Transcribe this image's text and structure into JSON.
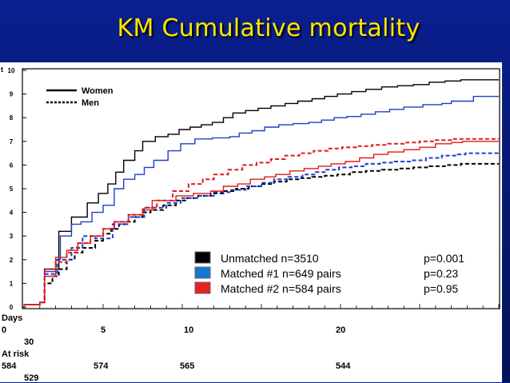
{
  "slide_title": "KM Cumulative mortality",
  "chart_data": {
    "type": "line",
    "step": true,
    "title": "",
    "ylabel": "Pct",
    "ylabel_visible": "t",
    "y_ticks": [
      "0",
      "1",
      "2",
      "3",
      "4",
      "5",
      "6",
      "7",
      "8",
      "9",
      "10"
    ],
    "ylim": [
      0,
      10
    ],
    "xlim": [
      0,
      30
    ],
    "grid": false,
    "sex_legend": [
      {
        "label": "Women",
        "style": "solid"
      },
      {
        "label": "Men",
        "style": "dashed"
      }
    ],
    "group_legend": [
      {
        "label": "Unmatched n=3510",
        "p": "p=0.001",
        "color": "#000000"
      },
      {
        "label": "Matched #1 n=649 pairs",
        "p": "p=0.23",
        "color": "#1f3fc8"
      },
      {
        "label": "Matched #2 n=584 pairs",
        "p": "p=0.95",
        "color": "#e01b1b"
      }
    ],
    "series": [
      {
        "name": "Unmatched Women",
        "color": "#000000",
        "style": "solid",
        "points": [
          [
            0,
            0.1
          ],
          [
            1,
            0.2
          ],
          [
            1.3,
            1.6
          ],
          [
            2,
            1.6
          ],
          [
            2.2,
            3.2
          ],
          [
            3,
            3.8
          ],
          [
            4,
            4.4
          ],
          [
            4.7,
            4.8
          ],
          [
            5.3,
            5.2
          ],
          [
            5.8,
            5.7
          ],
          [
            6.3,
            6.2
          ],
          [
            7,
            6.6
          ],
          [
            7.5,
            7.0
          ],
          [
            8.3,
            7.2
          ],
          [
            9.1,
            7.3
          ],
          [
            9.8,
            7.5
          ],
          [
            10.5,
            7.6
          ],
          [
            11.2,
            7.7
          ],
          [
            11.9,
            7.8
          ],
          [
            12.6,
            8.0
          ],
          [
            13.2,
            8.2
          ],
          [
            14,
            8.3
          ],
          [
            14.8,
            8.4
          ],
          [
            15.6,
            8.5
          ],
          [
            16.5,
            8.6
          ],
          [
            17.3,
            8.7
          ],
          [
            18.2,
            8.8
          ],
          [
            19,
            8.9
          ],
          [
            19.8,
            9.0
          ],
          [
            20.7,
            9.1
          ],
          [
            21.6,
            9.2
          ],
          [
            22.6,
            9.3
          ],
          [
            23.6,
            9.35
          ],
          [
            24.6,
            9.4
          ],
          [
            25.6,
            9.5
          ],
          [
            26.6,
            9.55
          ],
          [
            27.6,
            9.6
          ],
          [
            30,
            9.6
          ]
        ]
      },
      {
        "name": "Unmatched Men",
        "color": "#000000",
        "style": "dashed",
        "points": [
          [
            0,
            0.1
          ],
          [
            1,
            0.2
          ],
          [
            1.3,
            1.0
          ],
          [
            1.8,
            1.3
          ],
          [
            2.2,
            1.6
          ],
          [
            2.7,
            2.0
          ],
          [
            3.2,
            2.3
          ],
          [
            3.7,
            2.5
          ],
          [
            4.5,
            2.8
          ],
          [
            5,
            3.1
          ],
          [
            5.5,
            3.3
          ],
          [
            6,
            3.5
          ],
          [
            6.5,
            3.6
          ],
          [
            7,
            3.8
          ],
          [
            7.5,
            4.0
          ],
          [
            8,
            4.1
          ],
          [
            8.8,
            4.3
          ],
          [
            9.6,
            4.5
          ],
          [
            10.3,
            4.6
          ],
          [
            11,
            4.7
          ],
          [
            11.8,
            4.8
          ],
          [
            12.6,
            4.9
          ],
          [
            13.4,
            5.0
          ],
          [
            14.2,
            5.1
          ],
          [
            15,
            5.2
          ],
          [
            15.8,
            5.3
          ],
          [
            16.6,
            5.4
          ],
          [
            17.4,
            5.45
          ],
          [
            18.2,
            5.5
          ],
          [
            19,
            5.55
          ],
          [
            19.8,
            5.6
          ],
          [
            20.6,
            5.7
          ],
          [
            21.6,
            5.75
          ],
          [
            22.6,
            5.8
          ],
          [
            23.6,
            5.85
          ],
          [
            24.6,
            5.9
          ],
          [
            25.6,
            5.95
          ],
          [
            26.6,
            6.0
          ],
          [
            27.6,
            6.05
          ],
          [
            30,
            6.05
          ]
        ]
      },
      {
        "name": "Matched #1 Women",
        "color": "#1f3fc8",
        "style": "solid",
        "points": [
          [
            0,
            0.1
          ],
          [
            1,
            0.2
          ],
          [
            1.3,
            1.5
          ],
          [
            2,
            2.0
          ],
          [
            2.3,
            3.0
          ],
          [
            3,
            3.5
          ],
          [
            3.6,
            3.6
          ],
          [
            4.3,
            4.0
          ],
          [
            5,
            4.3
          ],
          [
            5.7,
            5.0
          ],
          [
            6.3,
            5.4
          ],
          [
            7,
            5.6
          ],
          [
            7.6,
            5.9
          ],
          [
            8.2,
            6.2
          ],
          [
            9.1,
            6.6
          ],
          [
            9.9,
            6.9
          ],
          [
            10.8,
            7.1
          ],
          [
            11.9,
            7.15
          ],
          [
            13,
            7.2
          ],
          [
            13.6,
            7.35
          ],
          [
            14.4,
            7.45
          ],
          [
            15.2,
            7.6
          ],
          [
            16.1,
            7.7
          ],
          [
            17,
            7.75
          ],
          [
            18,
            7.8
          ],
          [
            18.8,
            7.9
          ],
          [
            19.6,
            8.0
          ],
          [
            20.4,
            8.05
          ],
          [
            21.3,
            8.15
          ],
          [
            22.2,
            8.25
          ],
          [
            23.1,
            8.35
          ],
          [
            24,
            8.45
          ],
          [
            25.2,
            8.55
          ],
          [
            26.4,
            8.6
          ],
          [
            27,
            8.7
          ],
          [
            28.4,
            8.9
          ],
          [
            30,
            8.9
          ]
        ]
      },
      {
        "name": "Matched #1 Men",
        "color": "#1f3fc8",
        "style": "dashed",
        "points": [
          [
            0,
            0.1
          ],
          [
            1,
            0.2
          ],
          [
            1.3,
            1.4
          ],
          [
            2.1,
            2.0
          ],
          [
            3,
            2.5
          ],
          [
            3.7,
            3.0
          ],
          [
            4.5,
            2.9
          ],
          [
            5.6,
            3.5
          ],
          [
            6.6,
            3.8
          ],
          [
            7.6,
            4.2
          ],
          [
            9,
            4.4
          ],
          [
            9.9,
            4.6
          ],
          [
            11,
            4.7
          ],
          [
            12,
            4.85
          ],
          [
            13,
            4.95
          ],
          [
            14,
            5.1
          ],
          [
            15,
            5.25
          ],
          [
            15.8,
            5.4
          ],
          [
            16.7,
            5.5
          ],
          [
            17.6,
            5.6
          ],
          [
            18.4,
            5.7
          ],
          [
            19.1,
            5.8
          ],
          [
            19.9,
            5.9
          ],
          [
            20.7,
            5.95
          ],
          [
            21.6,
            6.05
          ],
          [
            22.5,
            6.1
          ],
          [
            23.4,
            6.15
          ],
          [
            24.4,
            6.2
          ],
          [
            25.4,
            6.3
          ],
          [
            26.4,
            6.4
          ],
          [
            27.4,
            6.45
          ],
          [
            27.9,
            6.5
          ],
          [
            30,
            6.5
          ]
        ]
      },
      {
        "name": "Matched #2 Women",
        "color": "#e01b1b",
        "style": "solid",
        "points": [
          [
            0,
            0.1
          ],
          [
            1,
            0.2
          ],
          [
            1.3,
            1.3
          ],
          [
            2,
            2.1
          ],
          [
            2.7,
            2.4
          ],
          [
            3.4,
            2.7
          ],
          [
            4.2,
            3.0
          ],
          [
            5,
            3.3
          ],
          [
            5.7,
            3.6
          ],
          [
            6.6,
            3.9
          ],
          [
            7.5,
            4.1
          ],
          [
            8.1,
            4.5
          ],
          [
            9.6,
            4.7
          ],
          [
            10.7,
            4.8
          ],
          [
            11.8,
            4.9
          ],
          [
            12.6,
            5.1
          ],
          [
            13.5,
            5.2
          ],
          [
            14.3,
            5.4
          ],
          [
            15.2,
            5.5
          ],
          [
            15.9,
            5.6
          ],
          [
            16.8,
            5.75
          ],
          [
            17.7,
            5.85
          ],
          [
            18.6,
            5.95
          ],
          [
            19.4,
            6.05
          ],
          [
            20.3,
            6.15
          ],
          [
            21.2,
            6.3
          ],
          [
            22.1,
            6.45
          ],
          [
            23,
            6.55
          ],
          [
            24,
            6.65
          ],
          [
            25,
            6.75
          ],
          [
            26,
            6.9
          ],
          [
            27,
            6.95
          ],
          [
            27.7,
            7.0
          ],
          [
            30,
            7.0
          ]
        ]
      },
      {
        "name": "Matched #2 Men",
        "color": "#e01b1b",
        "style": "dashed",
        "points": [
          [
            0,
            0.1
          ],
          [
            1,
            0.2
          ],
          [
            1.3,
            1.6
          ],
          [
            2,
            1.9
          ],
          [
            2.7,
            2.3
          ],
          [
            3.4,
            2.7
          ],
          [
            4.2,
            3.0
          ],
          [
            5,
            3.3
          ],
          [
            5.7,
            3.6
          ],
          [
            6.6,
            3.9
          ],
          [
            7.5,
            4.2
          ],
          [
            8.4,
            4.5
          ],
          [
            9.4,
            4.9
          ],
          [
            10.4,
            5.2
          ],
          [
            11.3,
            5.4
          ],
          [
            12,
            5.6
          ],
          [
            12.9,
            5.8
          ],
          [
            13.8,
            6.0
          ],
          [
            14.7,
            6.1
          ],
          [
            15.6,
            6.25
          ],
          [
            16.5,
            6.4
          ],
          [
            17.4,
            6.5
          ],
          [
            18.3,
            6.6
          ],
          [
            19.2,
            6.7
          ],
          [
            20.1,
            6.75
          ],
          [
            21,
            6.8
          ],
          [
            22,
            6.85
          ],
          [
            23,
            6.9
          ],
          [
            24,
            6.95
          ],
          [
            25,
            7.0
          ],
          [
            26,
            7.05
          ],
          [
            27,
            7.1
          ],
          [
            30,
            7.1
          ]
        ]
      }
    ]
  },
  "footer": {
    "days_label": "Days",
    "days_ticks": [
      "0",
      "5",
      "10",
      "20",
      "30"
    ],
    "at_risk_label": "At risk",
    "at_risk_values": [
      "584",
      "574",
      "565",
      "544",
      "529"
    ]
  }
}
